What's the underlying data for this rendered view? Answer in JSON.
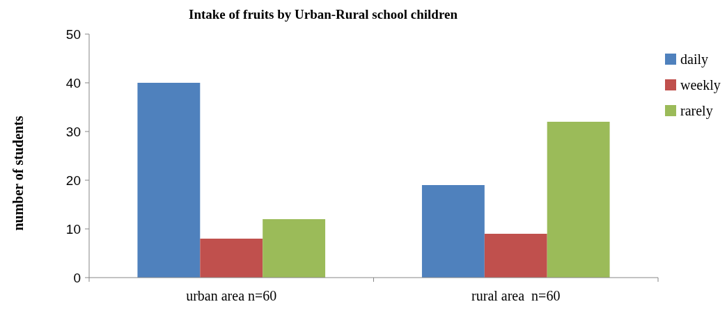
{
  "chart_data": {
    "type": "bar",
    "title": "Intake of fruits by Urban-Rural school children",
    "ylabel": "number of students",
    "categories": [
      "urban area n=60",
      "rural area  n=60"
    ],
    "series": [
      {
        "name": "daily",
        "color": "#4f81bd",
        "values": [
          40,
          19
        ]
      },
      {
        "name": "weekly",
        "color": "#c0504d",
        "values": [
          8,
          9
        ]
      },
      {
        "name": "rarely",
        "color": "#9bbb59",
        "values": [
          12,
          32
        ]
      }
    ],
    "ylim": [
      0,
      50
    ],
    "yticks": [
      0,
      10,
      20,
      30,
      40,
      50
    ],
    "grid": false,
    "legend": "right"
  }
}
